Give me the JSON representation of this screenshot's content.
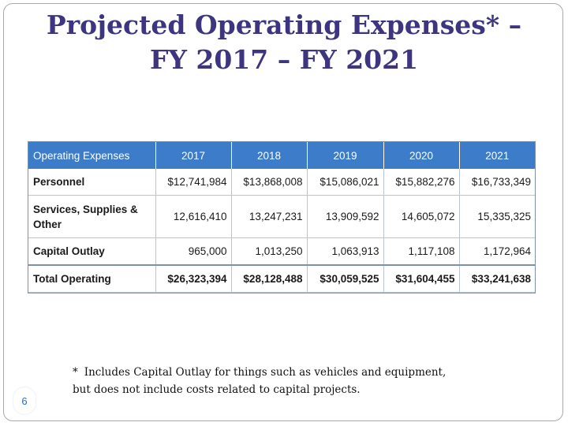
{
  "title": {
    "line1": "Projected Operating Expenses* –",
    "line2": "FY 2017 – FY 2021"
  },
  "table": {
    "headers": [
      "Operating Expenses",
      "2017",
      "2018",
      "2019",
      "2020",
      "2021"
    ],
    "rows": [
      {
        "label": "Personnel",
        "values": [
          "$12,741,984",
          "$13,868,008",
          "$15,086,021",
          "$15,882,276",
          "$16,733,349"
        ]
      },
      {
        "label": "Services, Supplies & Other",
        "values": [
          "12,616,410",
          "13,247,231",
          "13,909,592",
          "14,605,072",
          "15,335,325"
        ]
      },
      {
        "label": "Capital Outlay",
        "values": [
          "965,000",
          "1,013,250",
          "1,063,913",
          "1,117,108",
          "1,172,964"
        ]
      },
      {
        "label": "Total Operating",
        "values": [
          "$26,323,394",
          "$28,128,488",
          "$30,059,525",
          "$31,604,455",
          "$33,241,638"
        ]
      }
    ]
  },
  "footnote": {
    "star": "*",
    "line1": "Includes Capital Outlay for things such as vehicles and equipment,",
    "line2": "but does not include costs related to capital projects."
  },
  "page_number": "6",
  "colors": {
    "title": "#3d3580",
    "header_bg": "#3d7cc9",
    "page_number": "#2a6fb8"
  }
}
